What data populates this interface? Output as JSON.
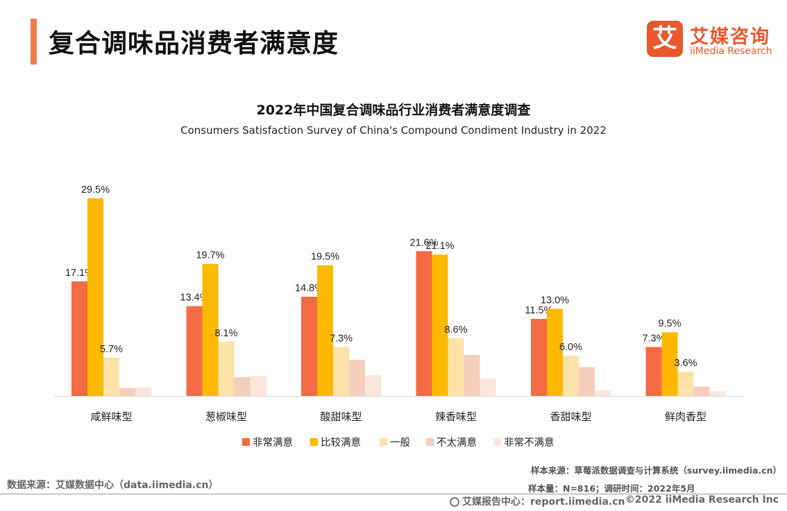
{
  "header": {
    "title": "复合调味品消费者满意度"
  },
  "logo": {
    "mark": "艾",
    "cn": "艾媒咨询",
    "en": "iiMedia Research"
  },
  "chart_data": {
    "type": "bar",
    "title": "2022年中国复合调味品行业消费者满意度调查",
    "subtitle": "Consumers Satisfaction Survey of China's Compound Condiment Industry in 2022",
    "categories": [
      "咸鲜味型",
      "葱椒味型",
      "酸甜味型",
      "辣香味型",
      "香甜味型",
      "鲜肉香型"
    ],
    "series": [
      {
        "name": "非常满意",
        "color": "#f26b43",
        "values": [
          17.1,
          13.4,
          14.8,
          21.6,
          11.5,
          7.3
        ],
        "labeled": true
      },
      {
        "name": "比较满意",
        "color": "#fcb900",
        "values": [
          29.5,
          19.7,
          19.5,
          21.1,
          13.0,
          9.5
        ],
        "labeled": true
      },
      {
        "name": "一般",
        "color": "#fde2a8",
        "values": [
          5.7,
          8.1,
          7.3,
          8.6,
          6.0,
          3.6
        ],
        "labeled": true
      },
      {
        "name": "不太满意",
        "color": "#f6cfbc",
        "values": [
          1.2,
          2.8,
          5.4,
          6.1,
          4.3,
          1.4
        ],
        "labeled": false
      },
      {
        "name": "非常不满意",
        "color": "#fbe6de",
        "values": [
          1.3,
          3.0,
          3.1,
          2.6,
          0.8,
          0.7
        ],
        "labeled": false
      }
    ],
    "label_suffix": "%",
    "legend_position": "bottom",
    "grid": false
  },
  "footer": {
    "data_source": "数据来源：艾媒数据中心（data.iimedia.cn）",
    "sample_source": "样本来源：草莓派数据调查与计算系统（survey.iimedia.cn）",
    "sample_size": "样本量：N=816；调研时间：2022年5月",
    "report_center": "艾媒报告中心：report.iimedia.cn",
    "copyright": "©2022  iiMedia Research  Inc"
  }
}
